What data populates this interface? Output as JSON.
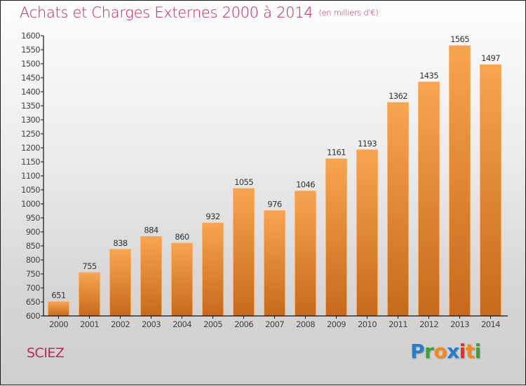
{
  "chart_data": {
    "type": "bar",
    "title": "Achats et Charges Externes 2000 à 2014",
    "subtitle": "(en milliers d'€)",
    "xlabel": "",
    "ylabel": "",
    "categories": [
      "2000",
      "2001",
      "2002",
      "2003",
      "2004",
      "2005",
      "2006",
      "2007",
      "2008",
      "2009",
      "2010",
      "2011",
      "2012",
      "2013",
      "2014"
    ],
    "values": [
      651,
      755,
      838,
      884,
      860,
      932,
      1055,
      976,
      1046,
      1161,
      1193,
      1362,
      1435,
      1565,
      1497
    ],
    "ylim": [
      600,
      1600
    ],
    "yticks": [
      600,
      650,
      700,
      750,
      800,
      850,
      900,
      950,
      1000,
      1050,
      1100,
      1150,
      1200,
      1250,
      1300,
      1350,
      1400,
      1450,
      1500,
      1550,
      1600
    ],
    "grid": false,
    "legend": "none",
    "bar_color_top": "#f7a552",
    "bar_color_bottom": "#c7691c"
  },
  "footer": {
    "commune": "SCIEZ",
    "logo": [
      {
        "ch": "P",
        "color": "#2a7bc8"
      },
      {
        "ch": "r",
        "color": "#3aa03a"
      },
      {
        "ch": "o",
        "color": "#f08a1c"
      },
      {
        "ch": "x",
        "color": "#2a7bc8"
      },
      {
        "ch": "i",
        "color": "#e03030"
      },
      {
        "ch": "t",
        "color": "#f08a1c"
      },
      {
        "ch": "i",
        "color": "#3aa03a"
      }
    ]
  }
}
